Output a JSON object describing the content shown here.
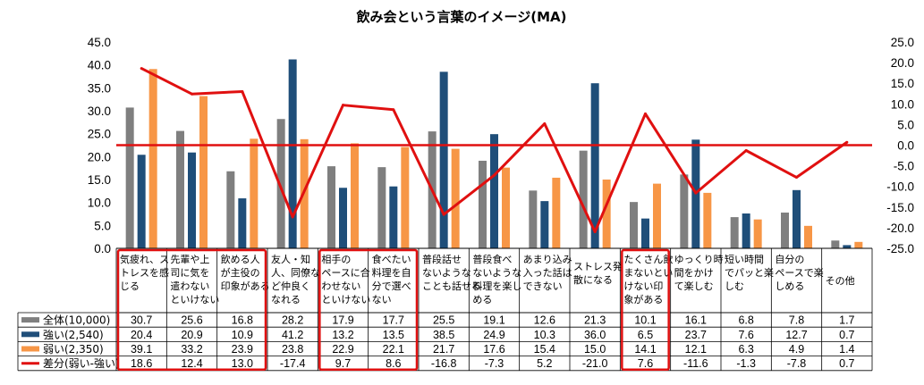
{
  "chart_data": {
    "type": "bar",
    "title": "飲み会という言葉のイメージ(MA)",
    "categories": [
      [
        "気疲れ、ス",
        "トレスを感",
        "じる"
      ],
      [
        "先輩や上",
        "司に気を",
        "遣わない",
        "といけない"
      ],
      [
        "飲める人",
        "が主役の",
        "印象がある"
      ],
      [
        "友人・知",
        "人、同僚な",
        "ど仲良く",
        "なれる"
      ],
      [
        "相手の",
        "ペースに合",
        "わせない",
        "といけない"
      ],
      [
        "食べたい",
        "料理を自",
        "分で選べ",
        "ない"
      ],
      [
        "普段話せ",
        "ないような",
        "ことも話せる"
      ],
      [
        "普段食べ",
        "ないような",
        "料理を楽し",
        "める"
      ],
      [
        "あまり込み",
        "入った話は",
        "できない"
      ],
      [
        "ストレス発",
        "散になる"
      ],
      [
        "たくさん飲",
        "まないとい",
        "けない印",
        "象がある"
      ],
      [
        "ゆっくり時",
        "間をかけ",
        "て楽しむ"
      ],
      [
        "短い時間",
        "でパッと楽",
        "しむ"
      ],
      [
        "自分の",
        "ペースで楽",
        "しめる"
      ],
      [
        "その他"
      ]
    ],
    "y_left": {
      "min": 0,
      "max": 45,
      "step": 5,
      "ticks": [
        "0.0",
        "5.0",
        "10.0",
        "15.0",
        "20.0",
        "25.0",
        "30.0",
        "35.0",
        "40.0",
        "45.0"
      ]
    },
    "y_right": {
      "min": -25,
      "max": 25,
      "step": 5,
      "ticks": [
        "-25.0",
        "-20.0",
        "-15.0",
        "-10.0",
        "-5.0",
        "0.0",
        "5.0",
        "10.0",
        "15.0",
        "20.0",
        "25.0"
      ]
    },
    "series": [
      {
        "name": "全体(10,000)",
        "type": "bar",
        "color": "#7f7f7f",
        "values": [
          30.7,
          25.6,
          16.8,
          28.2,
          17.9,
          17.7,
          25.5,
          19.1,
          12.6,
          21.3,
          10.1,
          16.1,
          6.8,
          7.8,
          1.7
        ],
        "labels": [
          "30.7",
          "25.6",
          "16.8",
          "28.2",
          "17.9",
          "17.7",
          "25.5",
          "19.1",
          "12.6",
          "21.3",
          "10.1",
          "16.1",
          "6.8",
          "7.8",
          "1.7"
        ]
      },
      {
        "name": "強い(2,540)",
        "type": "bar",
        "color": "#1f4e79",
        "values": [
          20.4,
          20.9,
          10.9,
          41.2,
          13.2,
          13.5,
          38.5,
          24.9,
          10.3,
          36.0,
          6.5,
          23.7,
          7.6,
          12.7,
          0.7
        ],
        "labels": [
          "20.4",
          "20.9",
          "10.9",
          "41.2",
          "13.2",
          "13.5",
          "38.5",
          "24.9",
          "10.3",
          "36.0",
          "6.5",
          "23.7",
          "7.6",
          "12.7",
          "0.7"
        ]
      },
      {
        "name": "弱い(2,350)",
        "type": "bar",
        "color": "#f79646",
        "values": [
          39.1,
          33.2,
          23.9,
          23.8,
          22.9,
          22.1,
          21.7,
          17.6,
          15.4,
          15.0,
          14.1,
          12.1,
          6.3,
          4.9,
          1.4
        ],
        "labels": [
          "39.1",
          "33.2",
          "23.9",
          "23.8",
          "22.9",
          "22.1",
          "21.7",
          "17.6",
          "15.4",
          "15.0",
          "14.1",
          "12.1",
          "6.3",
          "4.9",
          "1.4"
        ]
      },
      {
        "name": "差分(弱い-強い)",
        "type": "line",
        "axis": "right",
        "color": "#e01010",
        "values": [
          18.6,
          12.4,
          13.0,
          -17.4,
          9.7,
          8.6,
          -16.8,
          -7.3,
          5.2,
          -21.0,
          7.6,
          -11.6,
          -1.3,
          -7.8,
          0.7
        ],
        "labels": [
          "18.6",
          "12.4",
          "13.0",
          "-17.4",
          "9.7",
          "8.6",
          "-16.8",
          "-7.3",
          "5.2",
          "-21.0",
          "7.6",
          "-11.6",
          "-1.3",
          "-7.8",
          "0.7"
        ]
      }
    ],
    "highlight_groups": [
      [
        0,
        2
      ],
      [
        4,
        5
      ],
      [
        10,
        10
      ]
    ],
    "highlight_color": "#e01010"
  }
}
